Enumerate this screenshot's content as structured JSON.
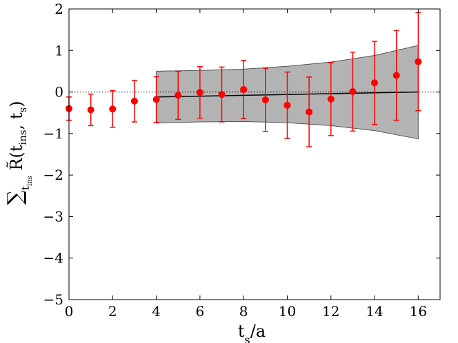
{
  "chart_data": {
    "type": "scatter",
    "title": "",
    "xlabel": "t_s/a",
    "ylabel": "∑_{t_ins} R̃(t_ins, t_s)",
    "xlim": [
      0,
      17
    ],
    "ylim": [
      -5,
      2
    ],
    "xticks": [
      "0",
      "2",
      "4",
      "6",
      "8",
      "10",
      "12",
      "14",
      "16"
    ],
    "yticks": [
      "2",
      "1",
      "0",
      "−1",
      "−2",
      "−3",
      "−4",
      "−5"
    ],
    "grid": false,
    "reference_line": {
      "y": 0,
      "style": "dotted"
    },
    "series": [
      {
        "kind": "points_with_errorbars",
        "color": "#ff0000",
        "x": [
          0,
          1,
          2,
          3,
          4,
          5,
          6,
          7,
          8,
          9,
          10,
          11,
          12,
          13,
          14,
          15,
          16
        ],
        "y": [
          -0.4,
          -0.43,
          -0.41,
          -0.22,
          -0.18,
          -0.08,
          -0.01,
          -0.06,
          0.06,
          -0.19,
          -0.32,
          -0.48,
          -0.17,
          0.01,
          0.22,
          0.4,
          0.73
        ],
        "yerr": [
          0.28,
          0.38,
          0.44,
          0.5,
          0.55,
          0.58,
          0.62,
          0.66,
          0.7,
          0.76,
          0.8,
          0.84,
          0.88,
          0.95,
          1.0,
          1.08,
          1.18
        ]
      },
      {
        "kind": "fit_band",
        "fill": "#b3b3b3",
        "x": [
          4,
          6,
          8,
          10,
          12,
          14,
          16
        ],
        "y": [
          -0.12,
          -0.1,
          -0.08,
          -0.06,
          -0.04,
          -0.02,
          0.0
        ],
        "upper": [
          0.5,
          0.52,
          0.55,
          0.62,
          0.72,
          0.88,
          1.12
        ],
        "lower": [
          -0.75,
          -0.72,
          -0.71,
          -0.74,
          -0.81,
          -0.93,
          -1.13
        ]
      }
    ]
  }
}
